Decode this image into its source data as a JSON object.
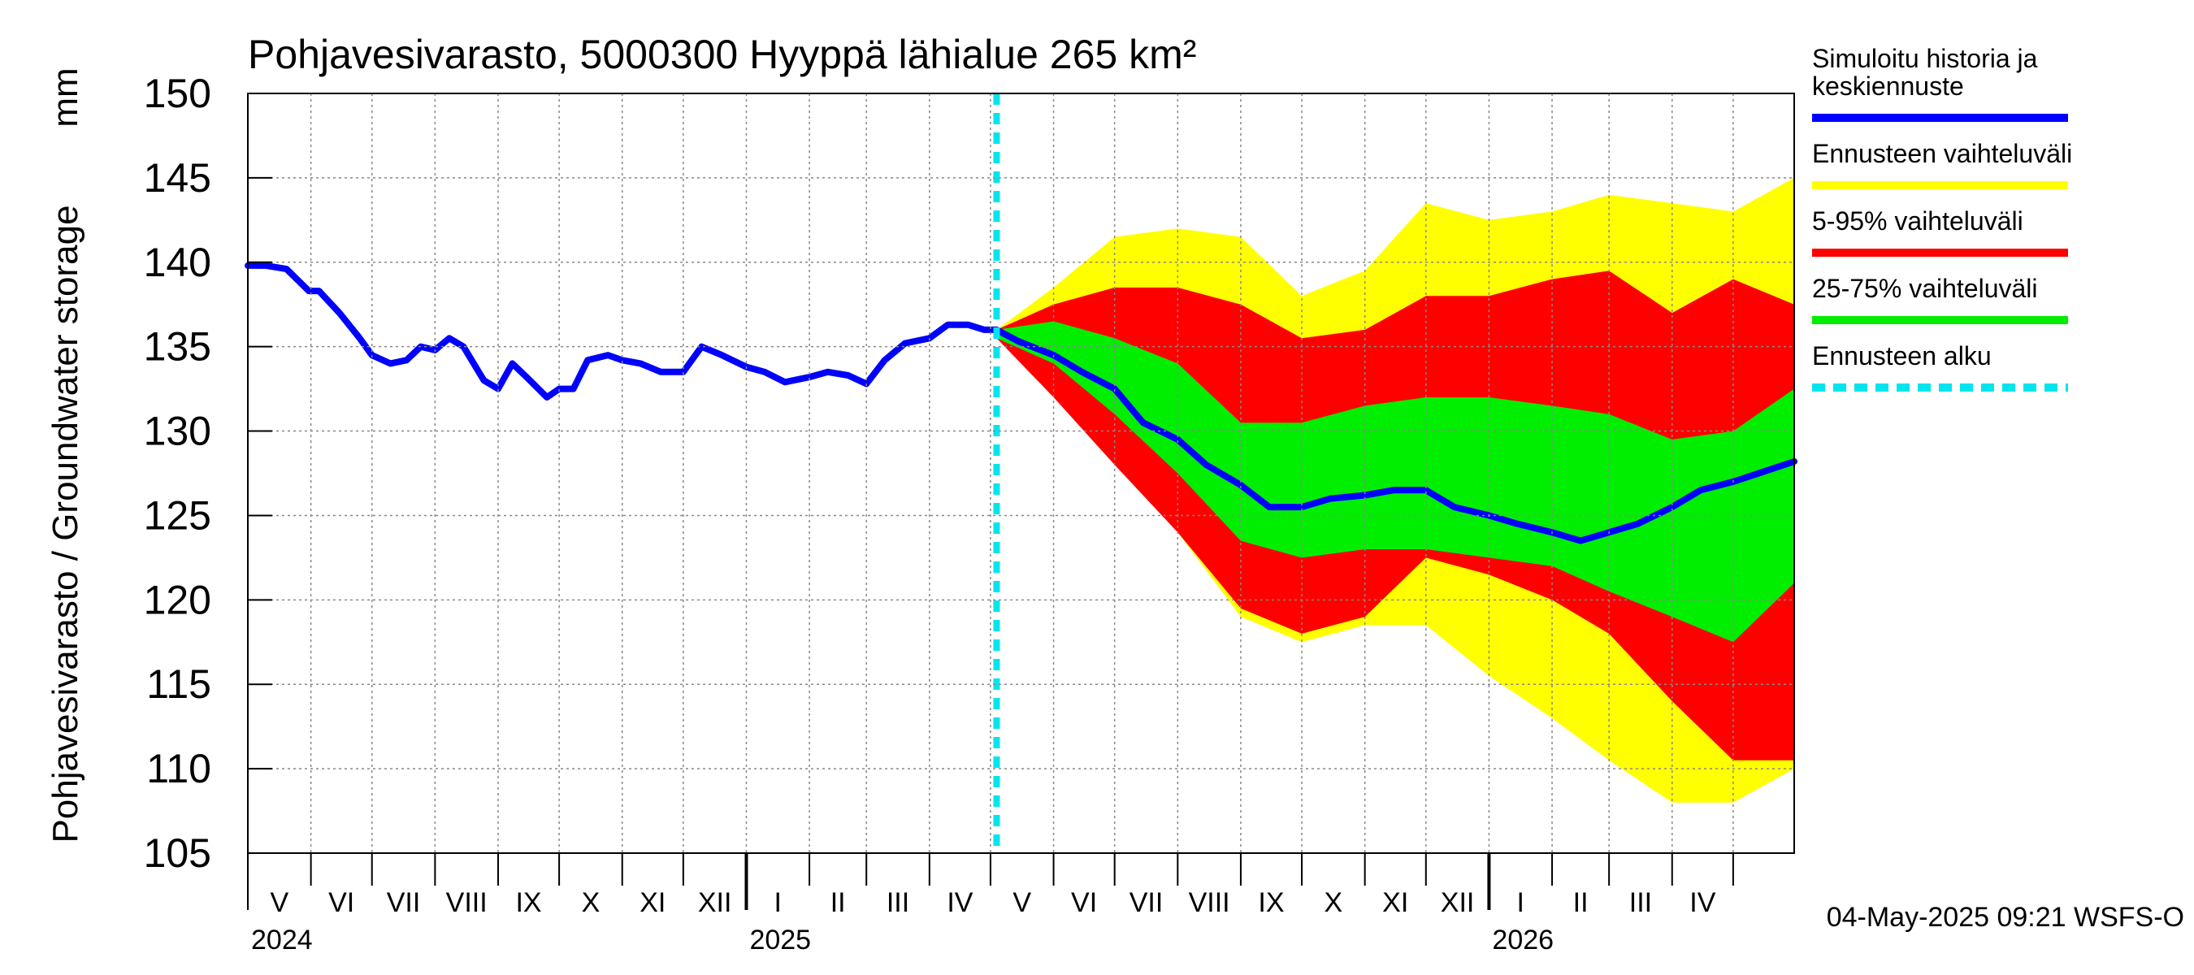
{
  "chart_data": {
    "type": "area",
    "title": "Pohjavesivarasto, 5000300 Hyyppä lähialue 265 km²",
    "ylabel": "Pohjavesivarasto / Groundwater storage",
    "yunit": "mm",
    "ylim": [
      105,
      150
    ],
    "yticks": [
      105,
      110,
      115,
      120,
      125,
      130,
      135,
      140,
      145,
      150
    ],
    "xlim": [
      "2024-05-01",
      "2026-05-31"
    ],
    "months": [
      {
        "label": "V",
        "start": "2024-05-01"
      },
      {
        "label": "VI",
        "start": "2024-06-01"
      },
      {
        "label": "VII",
        "start": "2024-07-01"
      },
      {
        "label": "VIII",
        "start": "2024-08-01"
      },
      {
        "label": "IX",
        "start": "2024-09-01"
      },
      {
        "label": "X",
        "start": "2024-10-01"
      },
      {
        "label": "XI",
        "start": "2024-11-01"
      },
      {
        "label": "XII",
        "start": "2024-12-01"
      },
      {
        "label": "I",
        "start": "2025-01-01"
      },
      {
        "label": "II",
        "start": "2025-02-01"
      },
      {
        "label": "III",
        "start": "2025-03-01"
      },
      {
        "label": "IV",
        "start": "2025-04-01"
      },
      {
        "label": "V",
        "start": "2025-05-01"
      },
      {
        "label": "VI",
        "start": "2025-06-01"
      },
      {
        "label": "VII",
        "start": "2025-07-01"
      },
      {
        "label": "VIII",
        "start": "2025-08-01"
      },
      {
        "label": "IX",
        "start": "2025-09-01"
      },
      {
        "label": "X",
        "start": "2025-10-01"
      },
      {
        "label": "XI",
        "start": "2025-11-01"
      },
      {
        "label": "XII",
        "start": "2025-12-01"
      },
      {
        "label": "I",
        "start": "2026-01-01"
      },
      {
        "label": "II",
        "start": "2026-02-01"
      },
      {
        "label": "III",
        "start": "2026-03-01"
      },
      {
        "label": "IV",
        "start": "2026-04-01"
      },
      {
        "label": "",
        "start": "2026-05-01"
      }
    ],
    "years": [
      {
        "label": "2024",
        "date": "2024-05-01"
      },
      {
        "label": "2025",
        "date": "2025-01-01"
      },
      {
        "label": "2026",
        "date": "2026-01-01"
      }
    ],
    "forecast_start": "2025-05-04",
    "legend": [
      {
        "label": "Simuloitu historia ja keskiennuste",
        "color": "#0000ff",
        "style": "solid"
      },
      {
        "label": "Ennusteen vaihteluväli",
        "color": "#ffff00",
        "style": "solid"
      },
      {
        "label": "5-95% vaihteluväli",
        "color": "#ff0000",
        "style": "solid"
      },
      {
        "label": "25-75% vaihteluväli",
        "color": "#00ee00",
        "style": "solid"
      },
      {
        "label": "Ennusteen alku",
        "color": "#00e5ee",
        "style": "dashed"
      }
    ],
    "legend_position": "right",
    "timestamp": "04-May-2025 09:21 WSFS-O",
    "series": {
      "history_and_median": {
        "x": [
          "2024-05-01",
          "2024-05-10",
          "2024-05-20",
          "2024-05-31",
          "2024-06-05",
          "2024-06-15",
          "2024-06-25",
          "2024-07-01",
          "2024-07-10",
          "2024-07-18",
          "2024-07-25",
          "2024-08-01",
          "2024-08-08",
          "2024-08-15",
          "2024-08-25",
          "2024-09-01",
          "2024-09-08",
          "2024-09-15",
          "2024-09-25",
          "2024-10-01",
          "2024-10-08",
          "2024-10-15",
          "2024-10-25",
          "2024-11-01",
          "2024-11-10",
          "2024-11-20",
          "2024-12-01",
          "2024-12-10",
          "2024-12-20",
          "2025-01-01",
          "2025-01-10",
          "2025-01-20",
          "2025-02-01",
          "2025-02-10",
          "2025-02-20",
          "2025-03-01",
          "2025-03-10",
          "2025-03-20",
          "2025-04-01",
          "2025-04-10",
          "2025-04-20",
          "2025-04-28",
          "2025-05-04",
          "2025-05-15",
          "2025-06-01",
          "2025-06-15",
          "2025-07-01",
          "2025-07-15",
          "2025-08-01",
          "2025-08-15",
          "2025-09-01",
          "2025-09-15",
          "2025-10-01",
          "2025-10-15",
          "2025-11-01",
          "2025-11-15",
          "2025-12-01",
          "2025-12-15",
          "2026-01-01",
          "2026-01-15",
          "2026-02-01",
          "2026-02-15",
          "2026-03-01",
          "2026-03-15",
          "2026-04-01",
          "2026-04-15",
          "2026-05-01",
          "2026-05-31"
        ],
        "y": [
          139.8,
          139.8,
          139.6,
          138.3,
          138.3,
          137.0,
          135.5,
          134.5,
          134.0,
          134.2,
          135.0,
          134.8,
          135.5,
          135.0,
          133.0,
          132.5,
          134.0,
          133.2,
          132.0,
          132.5,
          132.5,
          134.2,
          134.5,
          134.2,
          134.0,
          133.5,
          133.5,
          135.0,
          134.5,
          133.8,
          133.5,
          132.9,
          133.2,
          133.5,
          133.3,
          132.8,
          134.2,
          135.2,
          135.5,
          136.3,
          136.3,
          136.0,
          136.0,
          135.3,
          134.5,
          133.5,
          132.5,
          130.5,
          129.5,
          128.0,
          126.8,
          125.5,
          125.5,
          126.0,
          126.2,
          126.5,
          126.5,
          125.5,
          125.0,
          124.5,
          124.0,
          123.5,
          124.0,
          124.5,
          125.5,
          126.5,
          127.0,
          128.2
        ]
      },
      "forecast_x": [
        "2025-05-04",
        "2025-06-01",
        "2025-07-01",
        "2025-08-01",
        "2025-09-01",
        "2025-10-01",
        "2025-11-01",
        "2025-12-01",
        "2026-01-01",
        "2026-02-01",
        "2026-03-01",
        "2026-04-01",
        "2026-05-01",
        "2026-05-31"
      ],
      "range_upper": [
        136.0,
        138.5,
        141.5,
        142.0,
        141.5,
        138.0,
        139.5,
        143.5,
        142.5,
        143.0,
        144.0,
        143.5,
        143.0,
        145.0
      ],
      "range_lower": [
        135.5,
        133.5,
        129.5,
        124.0,
        119.0,
        117.5,
        118.5,
        118.5,
        115.5,
        113.0,
        110.5,
        108.0,
        108.0,
        110.0
      ],
      "p95": [
        136.0,
        137.5,
        138.5,
        138.5,
        137.5,
        135.5,
        136.0,
        138.0,
        138.0,
        139.0,
        139.5,
        137.0,
        139.0,
        137.5
      ],
      "p5": [
        135.5,
        132.0,
        128.0,
        124.0,
        119.5,
        118.0,
        119.0,
        122.5,
        121.5,
        120.0,
        118.0,
        114.0,
        110.5,
        110.5
      ],
      "p75": [
        136.0,
        136.5,
        135.5,
        134.0,
        130.5,
        130.5,
        131.5,
        132.0,
        132.0,
        131.5,
        131.0,
        129.5,
        130.0,
        132.5
      ],
      "p25": [
        135.5,
        134.0,
        131.0,
        127.5,
        123.5,
        122.5,
        123.0,
        123.0,
        122.5,
        122.0,
        120.5,
        119.0,
        117.5,
        121.0
      ]
    }
  }
}
